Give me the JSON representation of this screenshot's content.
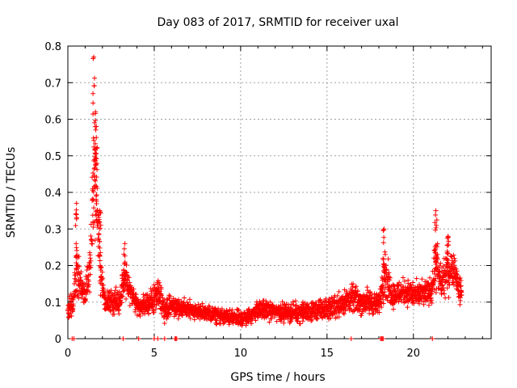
{
  "chart_data": {
    "type": "scatter",
    "title": "Day 083 of 2017, SRMTID for receiver uxal",
    "xlabel": "GPS time / hours",
    "ylabel": "SRMTID / TECUs",
    "xlim": [
      0,
      24.5
    ],
    "ylim": [
      0,
      0.8
    ],
    "xticks": [
      0,
      5,
      10,
      15,
      20
    ],
    "yticks": [
      0,
      0.1,
      0.2,
      0.3,
      0.4,
      0.5,
      0.6,
      0.7,
      0.8
    ],
    "xtick_labels": [
      "0",
      "5",
      "10",
      "15",
      "20"
    ],
    "ytick_labels": [
      "0",
      "0.1",
      "0.2",
      "0.3",
      "0.4",
      "0.5",
      "0.6",
      "0.7",
      "0.8"
    ],
    "grid": true,
    "marker": "+",
    "color": "#ff0000",
    "envelope": {
      "description": "approximate point cloud: typical level and spread per hour",
      "x": [
        0.0,
        0.3,
        0.5,
        0.8,
        1.0,
        1.3,
        1.5,
        1.7,
        1.9,
        2.2,
        2.6,
        3.0,
        3.3,
        3.6,
        4.0,
        4.5,
        5.0,
        5.3,
        5.6,
        6.0,
        7.0,
        8.0,
        9.0,
        10.0,
        10.5,
        11.0,
        12.0,
        13.0,
        14.0,
        15.0,
        16.0,
        16.5,
        17.0,
        17.5,
        18.0,
        18.3,
        18.8,
        19.5,
        20.0,
        20.5,
        21.0,
        21.3,
        21.6,
        22.0,
        22.3,
        22.7
      ],
      "level": [
        0.08,
        0.09,
        0.18,
        0.14,
        0.12,
        0.2,
        0.45,
        0.35,
        0.18,
        0.09,
        0.1,
        0.1,
        0.17,
        0.13,
        0.09,
        0.09,
        0.11,
        0.12,
        0.08,
        0.09,
        0.08,
        0.07,
        0.06,
        0.055,
        0.06,
        0.08,
        0.075,
        0.07,
        0.075,
        0.08,
        0.1,
        0.11,
        0.1,
        0.1,
        0.09,
        0.18,
        0.12,
        0.13,
        0.12,
        0.12,
        0.13,
        0.2,
        0.15,
        0.18,
        0.2,
        0.13
      ],
      "spread": [
        0.04,
        0.05,
        0.1,
        0.06,
        0.05,
        0.1,
        0.18,
        0.2,
        0.08,
        0.04,
        0.05,
        0.05,
        0.07,
        0.05,
        0.04,
        0.04,
        0.06,
        0.06,
        0.04,
        0.04,
        0.035,
        0.03,
        0.03,
        0.03,
        0.03,
        0.035,
        0.035,
        0.035,
        0.04,
        0.04,
        0.05,
        0.05,
        0.05,
        0.05,
        0.04,
        0.1,
        0.05,
        0.05,
        0.05,
        0.05,
        0.05,
        0.12,
        0.06,
        0.08,
        0.07,
        0.05
      ]
    },
    "peaks": [
      {
        "x": 0.5,
        "y": 0.37
      },
      {
        "x": 1.5,
        "y": 0.77
      },
      {
        "x": 1.6,
        "y": 0.62
      },
      {
        "x": 1.65,
        "y": 0.58
      },
      {
        "x": 1.85,
        "y": 0.35
      },
      {
        "x": 3.3,
        "y": 0.26
      },
      {
        "x": 18.3,
        "y": 0.3
      },
      {
        "x": 21.3,
        "y": 0.35
      },
      {
        "x": 22.0,
        "y": 0.28
      }
    ],
    "zero_points_x": [
      0.25,
      0.35,
      3.2,
      4.1,
      5.0,
      5.2,
      5.6,
      6.2,
      6.25,
      6.3,
      16.4,
      18.1,
      18.15,
      18.2,
      18.25,
      21.1
    ],
    "hour_range": [
      0,
      22.8
    ]
  }
}
